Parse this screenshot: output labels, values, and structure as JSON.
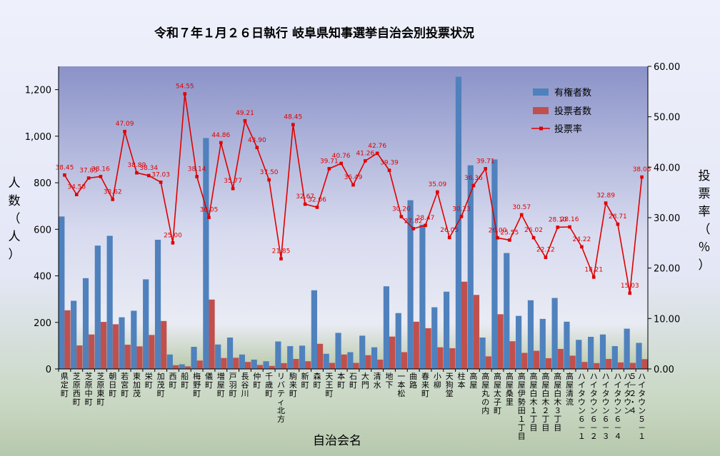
{
  "chart_data": {
    "type": "bar",
    "title": "令和７年１月２６日執行 岐阜県知事選挙自治会別投票状況",
    "xlabel": "自治会名",
    "ylabel": "人数（人）",
    "y2label": "投票率（％）",
    "ylim": [
      0,
      1300
    ],
    "yticks": [
      "0",
      "200",
      "400",
      "600",
      "800",
      "1,000",
      "1,200"
    ],
    "y2lim": [
      0,
      60
    ],
    "y2ticks": [
      "0.00",
      "10.00",
      "20.00",
      "30.00",
      "40.00",
      "50.00",
      "60.00"
    ],
    "categories": [
      "県定町",
      "芝原西町",
      "芝原中町",
      "芝原東町",
      "朝日町",
      "若宮町",
      "東加茂",
      "栄町",
      "加茂町",
      "西町",
      "船町",
      "梅野町",
      "儀町",
      "増屋町",
      "戸羽町",
      "長谷川",
      "仲町",
      "千歳町",
      "リバティ北方",
      "駒来町",
      "新町",
      "森町",
      "天王町",
      "本町",
      "石町",
      "大門",
      "清水",
      "地下",
      "一本松",
      "曲路",
      "春来町",
      "小柳",
      "天狗堂",
      "柱本",
      "高屋",
      "高屋丸の内",
      "高屋太子町",
      "高屋桑里",
      "高屋伊勢田１丁目",
      "高屋白木１丁目",
      "高屋白木２丁目",
      "高屋白木３丁目",
      "高屋清流",
      "ハイタウン６－１",
      "ハイタウン６－２",
      "ハイタウン６－３",
      "ハイタウン６－４",
      "ハイタウン５－２・４",
      "ハイタウン５－１"
    ],
    "series": [
      {
        "name": "有権者数",
        "type": "bar",
        "axis": "left",
        "color": "#4f81bd",
        "values": [
          655,
          293,
          390,
          530,
          572,
          222,
          250,
          385,
          555,
          62,
          20,
          95,
          992,
          105,
          135,
          62,
          40,
          33,
          118,
          98,
          100,
          338,
          65,
          155,
          72,
          143,
          93,
          355,
          240,
          725,
          620,
          265,
          332,
          1255,
          875,
          135,
          900,
          498,
          228,
          295,
          215,
          305,
          203,
          125,
          138,
          148,
          98,
          173,
          112
        ]
      },
      {
        "name": "投票者数",
        "type": "bar",
        "axis": "left",
        "color": "#c0504d",
        "values": [
          252,
          101,
          148,
          202,
          192,
          104,
          97,
          146,
          206,
          16,
          11,
          36,
          298,
          47,
          48,
          30,
          17,
          13,
          25,
          43,
          33,
          108,
          26,
          62,
          26,
          59,
          40,
          139,
          72,
          203,
          175,
          93,
          89,
          375,
          318,
          54,
          235,
          119,
          69,
          78,
          46,
          86,
          57,
          30,
          25,
          43,
          28,
          26,
          42
        ]
      },
      {
        "name": "投票率",
        "type": "line",
        "axis": "right",
        "color": "#e00000",
        "values": [
          38.45,
          34.58,
          37.85,
          38.16,
          33.62,
          47.09,
          38.89,
          38.34,
          37.03,
          25.0,
          54.55,
          38.14,
          30.05,
          44.86,
          35.77,
          49.21,
          43.9,
          37.5,
          21.85,
          48.45,
          32.67,
          32.06,
          39.71,
          40.76,
          36.49,
          41.26,
          42.76,
          39.39,
          30.2,
          27.82,
          28.47,
          35.09,
          26.05,
          30.23,
          36.36,
          39.71,
          26.0,
          25.55,
          30.57,
          26.02,
          22.12,
          28.1,
          28.16,
          24.22,
          18.21,
          32.89,
          28.71,
          15.03,
          38.05
        ],
        "labels": [
          "38.45",
          "34.58",
          "37.85",
          "38.16",
          "33.62",
          "47.09",
          "38.89",
          "38.34",
          "37.03",
          "25.00",
          "54.55",
          "38.14",
          "30.05",
          "44.86",
          "35.77",
          "49.21",
          "43.90",
          "37.50",
          "21.85",
          "48.45",
          "32.67",
          "32.06",
          "39.71",
          "40.76",
          "36.49",
          "41.26",
          "42.76",
          "39.39",
          "30.20",
          "27.82",
          "28.47",
          "35.09",
          "26.05",
          "30.23",
          "36.36",
          "39.71",
          "26.00",
          "25.55",
          "30.57",
          "26.02",
          "22.12",
          "28.10",
          "28.16",
          "24.22",
          "18.21",
          "32.89",
          "28.71",
          "15.03",
          "38.05"
        ]
      }
    ],
    "legend": "top-right",
    "grid": false
  }
}
